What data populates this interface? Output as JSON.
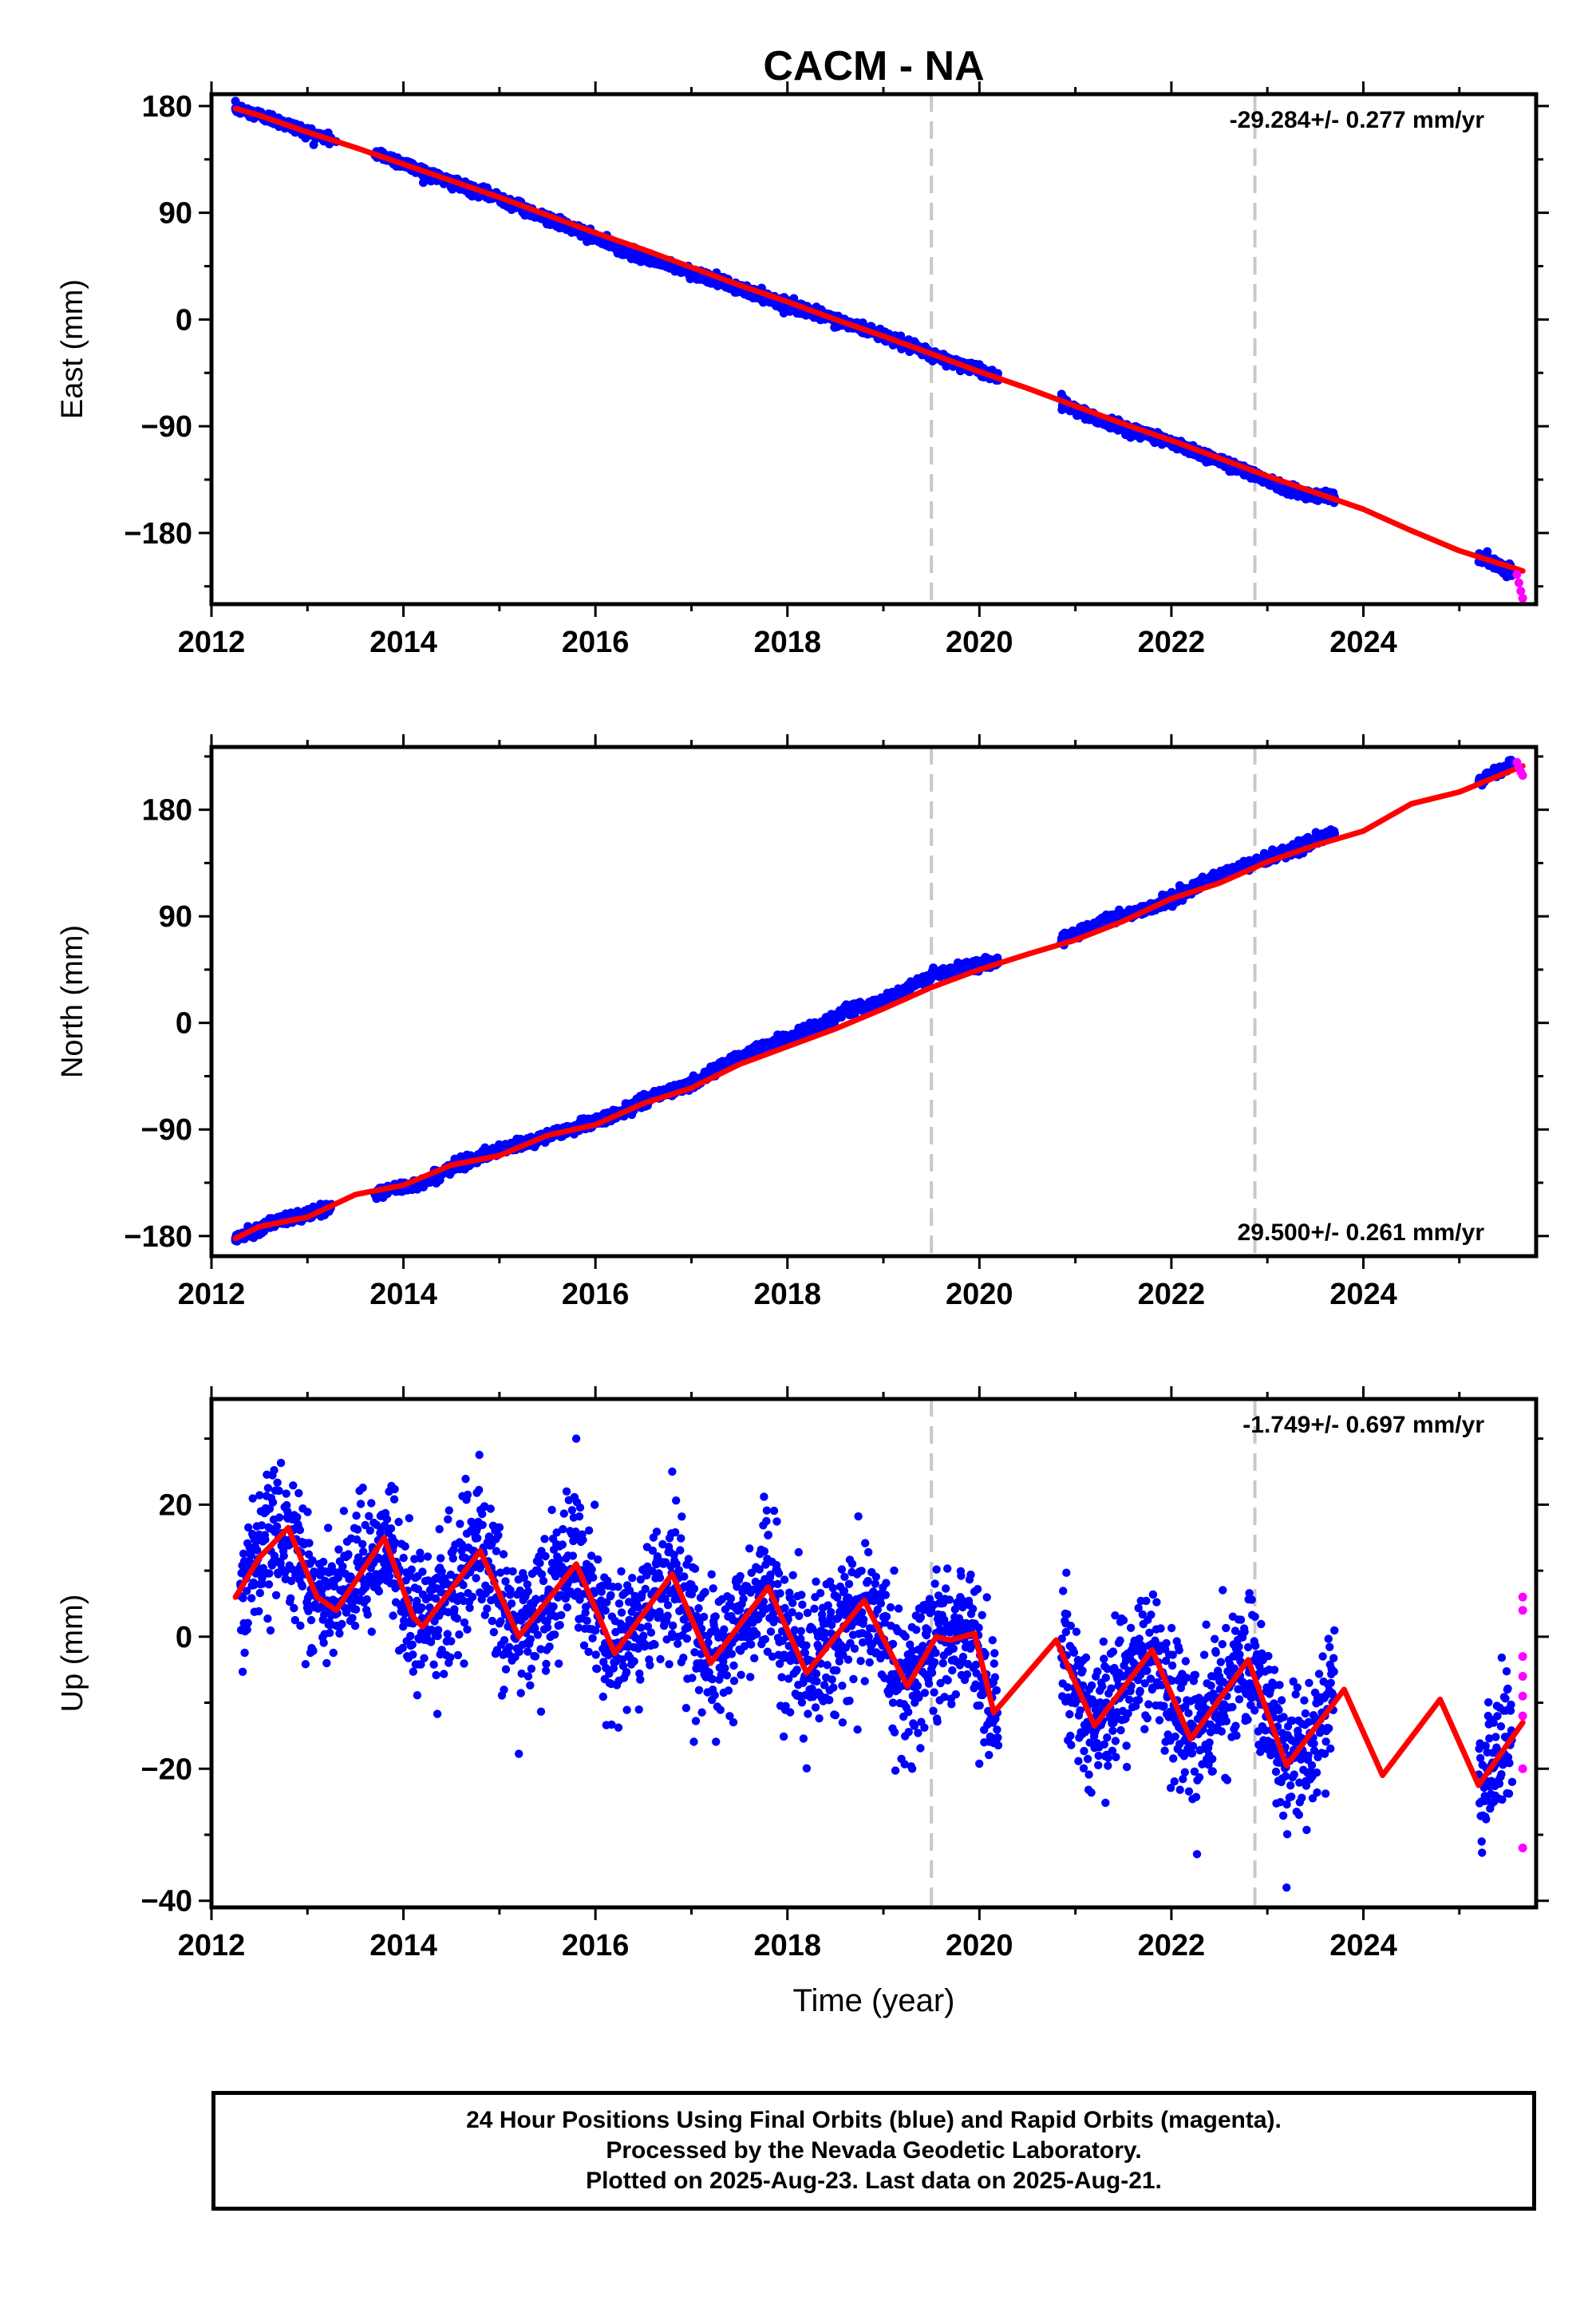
{
  "title": "CACM - NA",
  "footer": {
    "line1": "24 Hour Positions Using Final Orbits (blue) and Rapid Orbits (magenta).",
    "line2": "Processed by the Nevada Geodetic Laboratory.",
    "line3": "Plotted on 2025-Aug-23. Last data on 2025-Aug-21."
  },
  "colors": {
    "final_orbits": "#0000ff",
    "rapid_orbits": "#ff00ff",
    "model_fit": "#ff0000",
    "event_lines": "#c8c8c8",
    "frame": "#000000"
  },
  "chart_data": [
    {
      "type": "scatter",
      "panel": "east",
      "ylabel": "East (mm)",
      "xlabel": "",
      "xlim": [
        2012.0,
        2025.8
      ],
      "ylim": [
        -240,
        190
      ],
      "xticks": [
        2012,
        2014,
        2016,
        2018,
        2020,
        2022,
        2024
      ],
      "xtick_labels": [
        "2012",
        "2014",
        "2016",
        "2018",
        "2020",
        "2022",
        "2024"
      ],
      "yticks": [
        180,
        90,
        0,
        -90,
        -180
      ],
      "ytick_labels": [
        "180",
        "90",
        "0",
        "−90",
        "−180"
      ],
      "rate_text": "-29.284+/- 0.277 mm/yr",
      "rate_position": "top-right",
      "event_lines_x": [
        2019.5,
        2022.87
      ],
      "gaps": [
        [
          2020.2,
          2020.85
        ],
        [
          2023.7,
          2025.2
        ]
      ],
      "series": [
        {
          "name": "final_orbits",
          "marker": "dot",
          "x": [
            2012.25,
            2012.6,
            2013.0,
            2013.3,
            2013.8,
            2014.2,
            2014.6,
            2015.0,
            2015.4,
            2015.8,
            2016.2,
            2016.6,
            2017.0,
            2017.4,
            2017.8,
            2018.2,
            2018.6,
            2019.0,
            2019.5,
            2019.9,
            2020.15,
            2020.9,
            2021.3,
            2021.8,
            2022.2,
            2022.6,
            2022.9,
            2023.3,
            2023.7,
            2025.3,
            2025.55
          ],
          "y": [
            178,
            170,
            158,
            150,
            138,
            125,
            112,
            103,
            88,
            76,
            62,
            50,
            40,
            29,
            18,
            8,
            -3,
            -13,
            -30,
            -40,
            -47,
            -72,
            -86,
            -98,
            -110,
            -122,
            -132,
            -145,
            -150,
            -203,
            -212
          ]
        },
        {
          "name": "rapid_orbits",
          "marker": "dot",
          "x": [
            2025.6,
            2025.62,
            2025.64,
            2025.66
          ],
          "y": [
            -215,
            -222,
            -229,
            -235
          ]
        },
        {
          "name": "model_fit",
          "marker": "line",
          "x": [
            2012.25,
            2012.5,
            2013.0,
            2013.5,
            2014.0,
            2014.5,
            2015.0,
            2015.5,
            2016.0,
            2016.5,
            2017.0,
            2017.5,
            2018.0,
            2018.5,
            2019.0,
            2019.5,
            2020.0,
            2020.5,
            2021.0,
            2021.5,
            2022.0,
            2022.5,
            2023.0,
            2023.5,
            2024.0,
            2024.5,
            2025.0,
            2025.66
          ],
          "y": [
            178,
            172,
            158,
            145,
            131,
            117,
            103,
            88,
            73,
            59,
            44,
            29,
            15,
            0,
            -14,
            -29,
            -44,
            -58,
            -73,
            -88,
            -102,
            -117,
            -132,
            -146,
            -160,
            -178,
            -195,
            -212
          ]
        }
      ]
    },
    {
      "type": "scatter",
      "panel": "north",
      "ylabel": "North (mm)",
      "xlabel": "",
      "xlim": [
        2012.0,
        2025.8
      ],
      "ylim": [
        -197,
        233
      ],
      "xticks": [
        2012,
        2014,
        2016,
        2018,
        2020,
        2022,
        2024
      ],
      "xtick_labels": [
        "2012",
        "2014",
        "2016",
        "2018",
        "2020",
        "2022",
        "2024"
      ],
      "yticks": [
        180,
        90,
        0,
        -90,
        -180
      ],
      "ytick_labels": [
        "180",
        "90",
        "0",
        "−90",
        "−180"
      ],
      "rate_text": "29.500+/- 0.261 mm/yr",
      "rate_position": "bottom-right",
      "event_lines_x": [
        2019.5,
        2022.87
      ],
      "gaps": [
        [
          2020.2,
          2020.85
        ],
        [
          2023.7,
          2025.2
        ]
      ],
      "series": [
        {
          "name": "final_orbits",
          "marker": "dot",
          "x": [
            2012.25,
            2012.6,
            2013.0,
            2013.8,
            2014.2,
            2014.6,
            2015.0,
            2015.4,
            2015.8,
            2016.2,
            2016.6,
            2017.0,
            2017.4,
            2017.8,
            2018.2,
            2018.6,
            2019.0,
            2019.5,
            2019.9,
            2020.15,
            2020.9,
            2021.3,
            2021.8,
            2022.2,
            2022.6,
            2022.9,
            2023.3,
            2023.7,
            2025.3,
            2025.55
          ],
          "y": [
            -182,
            -170,
            -162,
            -142,
            -135,
            -118,
            -108,
            -98,
            -88,
            -78,
            -62,
            -52,
            -32,
            -18,
            -8,
            10,
            18,
            40,
            48,
            52,
            72,
            86,
            98,
            112,
            128,
            136,
            148,
            160,
            208,
            218
          ]
        },
        {
          "name": "rapid_orbits",
          "marker": "dot",
          "x": [
            2025.6,
            2025.62,
            2025.64,
            2025.66
          ],
          "y": [
            220,
            216,
            212,
            209
          ]
        },
        {
          "name": "model_fit",
          "marker": "line",
          "x": [
            2012.25,
            2012.5,
            2013.0,
            2013.5,
            2014.0,
            2014.5,
            2015.0,
            2015.5,
            2016.0,
            2016.5,
            2017.0,
            2017.5,
            2018.0,
            2018.5,
            2019.0,
            2019.5,
            2020.0,
            2020.5,
            2021.0,
            2021.5,
            2022.0,
            2022.5,
            2023.0,
            2023.5,
            2024.0,
            2024.5,
            2025.0,
            2025.66
          ],
          "y": [
            -182,
            -172,
            -164,
            -145,
            -137,
            -120,
            -112,
            -95,
            -86,
            -68,
            -55,
            -35,
            -20,
            -5,
            12,
            30,
            45,
            58,
            70,
            86,
            105,
            118,
            136,
            150,
            162,
            185,
            195,
            217
          ]
        }
      ]
    },
    {
      "type": "scatter",
      "panel": "up",
      "ylabel": "Up (mm)",
      "xlabel": "Time (year)",
      "xlim": [
        2012.0,
        2025.8
      ],
      "ylim": [
        -41,
        36
      ],
      "xticks": [
        2012,
        2014,
        2016,
        2018,
        2020,
        2022,
        2024
      ],
      "xtick_labels": [
        "2012",
        "2014",
        "2016",
        "2018",
        "2020",
        "2022",
        "2024"
      ],
      "yticks": [
        20,
        0,
        -20,
        -40
      ],
      "ytick_labels": [
        "20",
        "0",
        "−20",
        "−40"
      ],
      "rate_text": "-1.749+/- 0.697 mm/yr",
      "rate_position": "top-right",
      "event_lines_x": [
        2019.5,
        2022.87
      ],
      "gaps": [
        [
          2020.2,
          2020.85
        ],
        [
          2023.7,
          2025.2
        ]
      ],
      "series": [
        {
          "name": "final_orbits",
          "marker": "dot",
          "x": [
            2012.3,
            2012.5,
            2012.8,
            2013.0,
            2013.2,
            2013.8,
            2014.1,
            2014.4,
            2014.7,
            2015.0,
            2015.3,
            2015.7,
            2015.8,
            2016.1,
            2016.4,
            2016.7,
            2016.8,
            2017.1,
            2017.4,
            2017.7,
            2018.1,
            2018.4,
            2018.7,
            2019.1,
            2019.3,
            2019.5,
            2019.8,
            2020.05,
            2020.9,
            2021.2,
            2021.5,
            2021.8,
            2022.1,
            2022.5,
            2022.8,
            2023.1,
            2023.2,
            2023.4,
            2023.6,
            2025.3,
            2025.5,
            2025.55
          ],
          "y": [
            8,
            10,
            14,
            5,
            -4,
            10,
            2,
            -2,
            16,
            2,
            -6,
            22,
            30,
            -1,
            5,
            14,
            25,
            -4,
            0,
            6,
            -5,
            2,
            4,
            -10,
            -20,
            4,
            6,
            -16,
            2,
            -10,
            -6,
            -8,
            -14,
            -6,
            -8,
            -19,
            -38,
            -18,
            -12,
            -12,
            -8,
            -22
          ]
        },
        {
          "name": "rapid_orbits",
          "marker": "dot",
          "x": [
            2025.66,
            2025.66,
            2025.66,
            2025.66,
            2025.66,
            2025.66,
            2025.66,
            2025.66
          ],
          "y": [
            6,
            4,
            -3,
            -6,
            -9,
            -12,
            -20,
            -32
          ]
        },
        {
          "name": "model_fit",
          "marker": "line",
          "x": [
            2012.25,
            2012.5,
            2012.8,
            2013.1,
            2013.3,
            2013.8,
            2014.1,
            2014.2,
            2014.8,
            2015.2,
            2015.8,
            2016.2,
            2016.8,
            2017.2,
            2017.8,
            2018.2,
            2018.8,
            2019.25,
            2019.55,
            2019.7,
            2019.95,
            2020.15,
            2020.8,
            2021.2,
            2021.8,
            2022.2,
            2022.8,
            2023.2,
            2023.8,
            2024.2,
            2024.8,
            2025.2,
            2025.66
          ],
          "y": [
            6,
            12,
            16.5,
            6,
            4,
            15,
            3,
            1.5,
            13,
            0,
            11,
            -2.5,
            9.5,
            -4,
            7.5,
            -5.5,
            5.5,
            -7.5,
            0,
            -0.5,
            0.5,
            -11.5,
            -0.5,
            -13.5,
            -2,
            -15.5,
            -3.5,
            -19.5,
            -8,
            -21,
            -9.5,
            -22.5,
            -13
          ]
        }
      ]
    }
  ]
}
